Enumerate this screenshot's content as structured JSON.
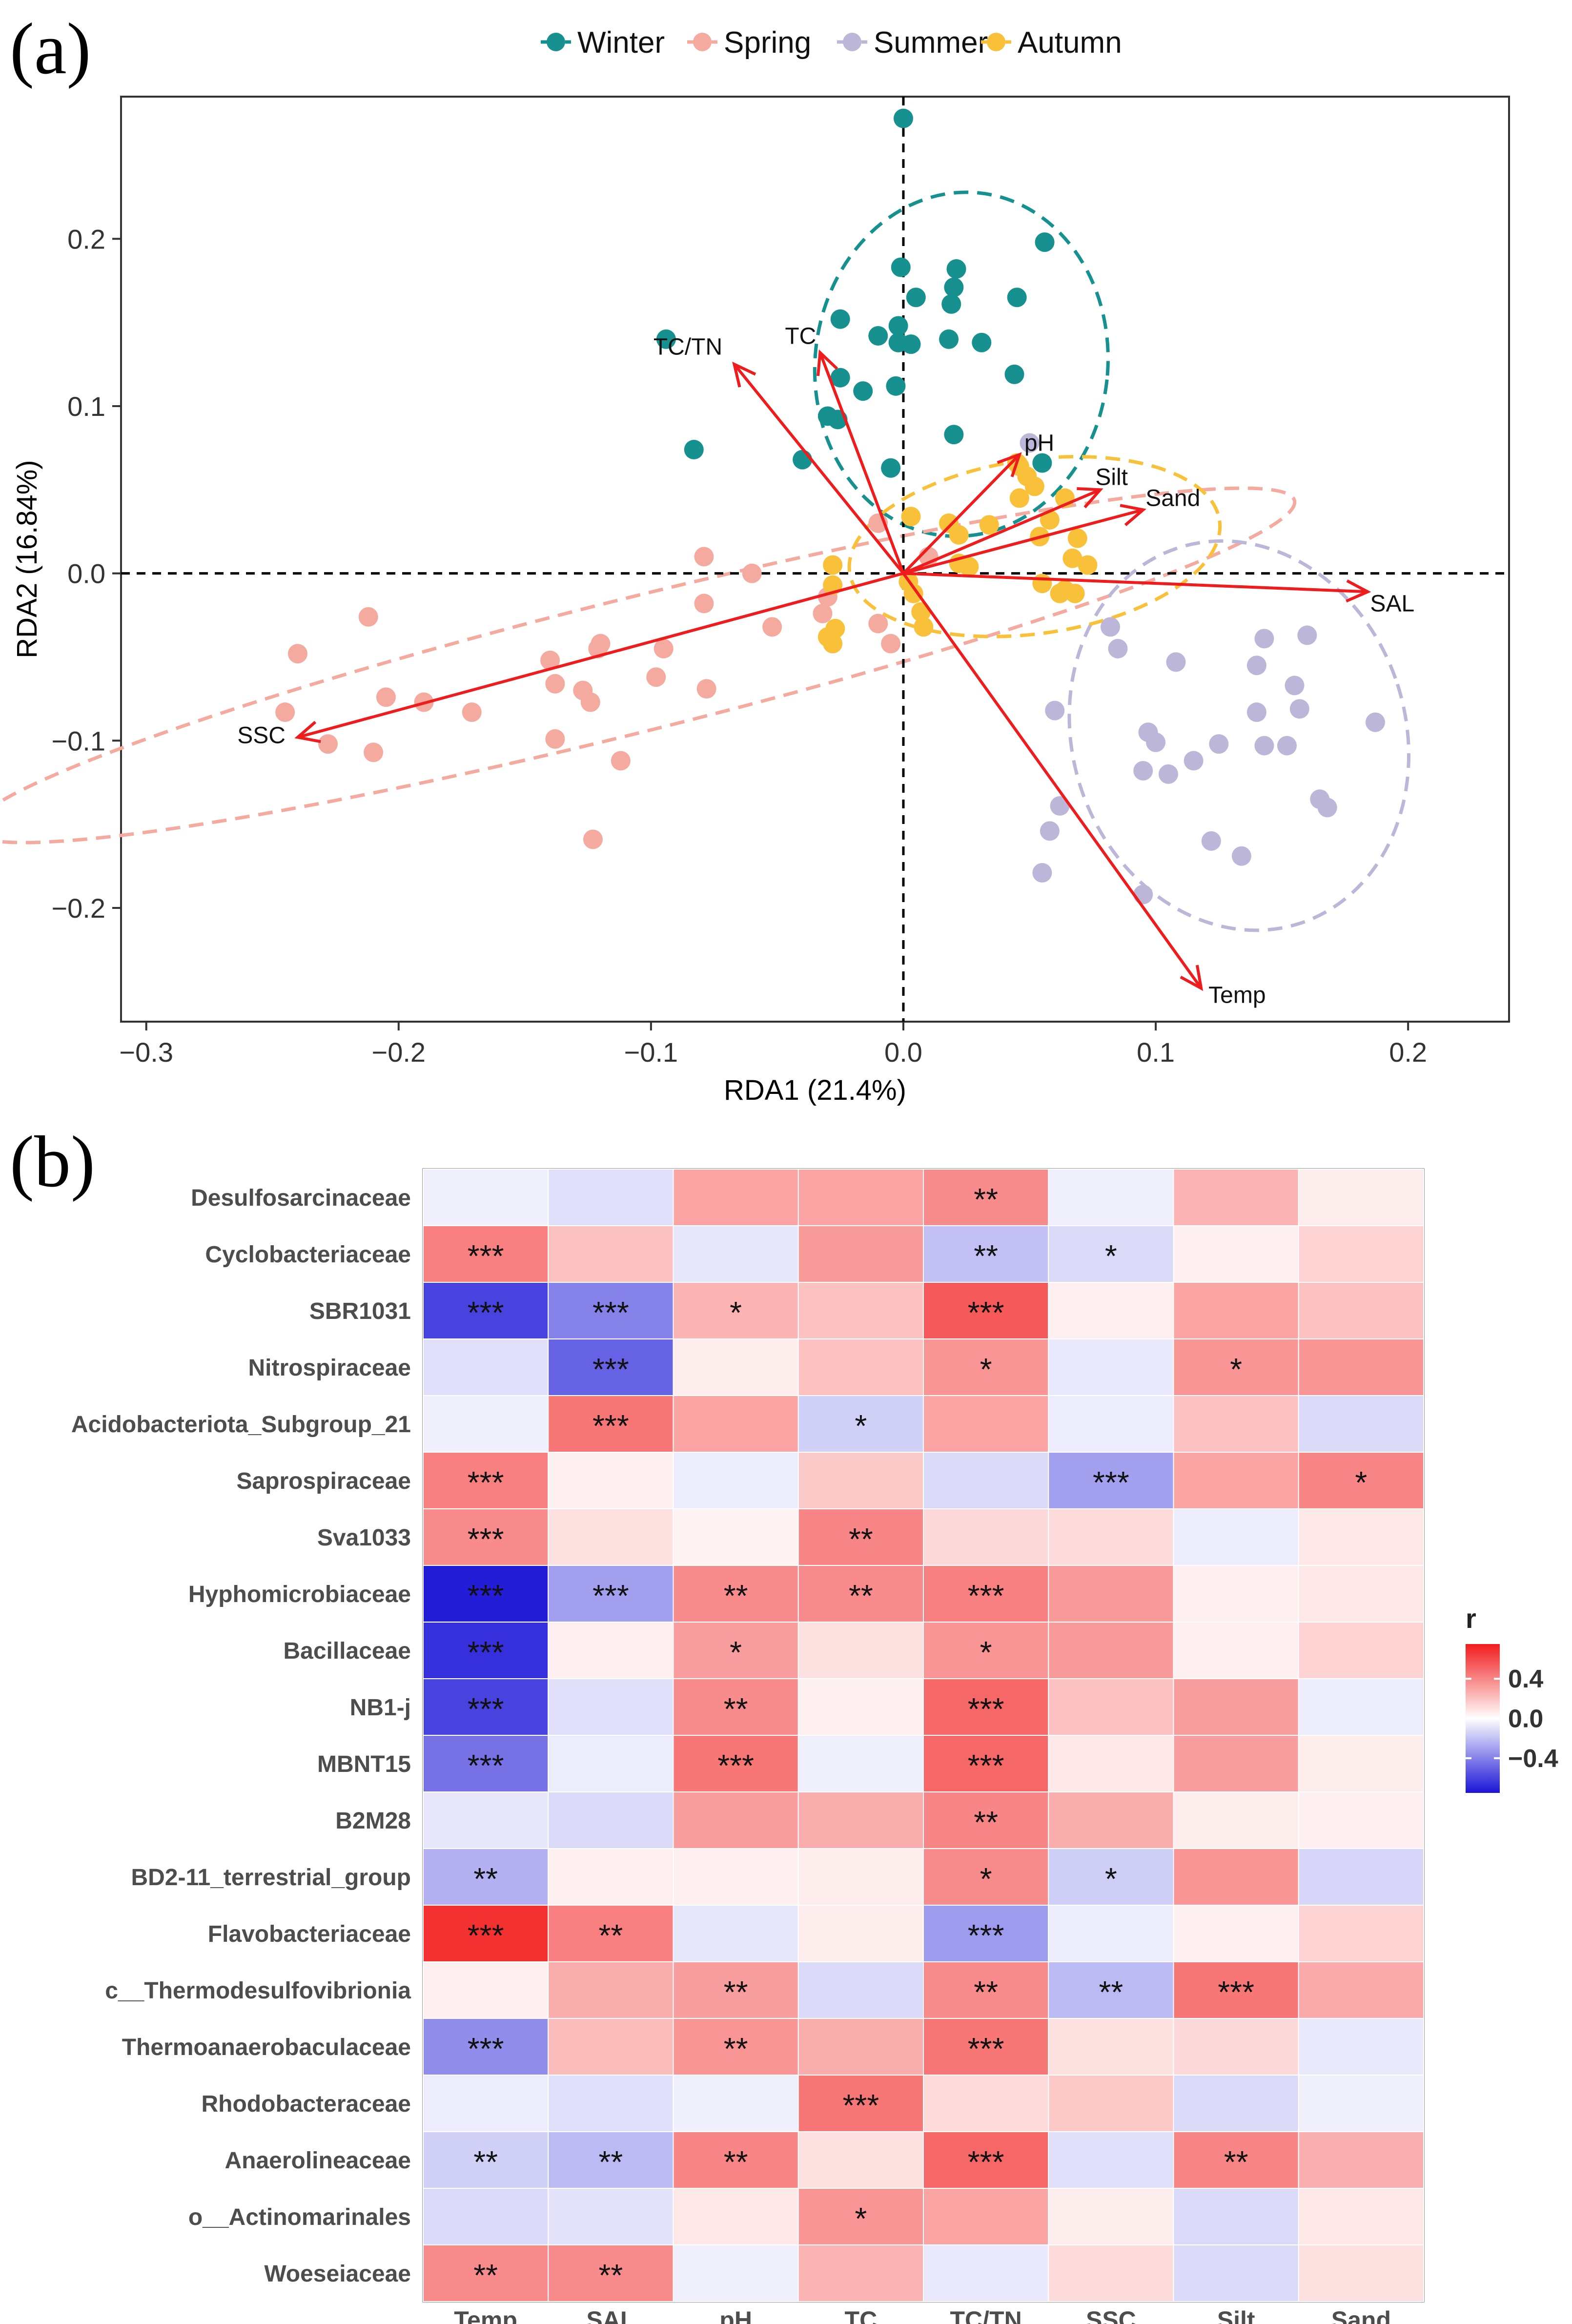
{
  "panels": {
    "a_label": "(a)",
    "b_label": "(b)"
  },
  "chart_data": [
    {
      "type": "scatter",
      "title": "",
      "xlabel": "RDA1 (21.4%)",
      "ylabel": "RDA2 (16.84%)",
      "xlim": [
        -0.31,
        0.24
      ],
      "ylim": [
        -0.268,
        0.285
      ],
      "xticks": [
        -0.3,
        -0.2,
        -0.1,
        0.0,
        0.1,
        0.2
      ],
      "xtick_labels": [
        "−0.3",
        "−0.2",
        "−0.1",
        "0.0",
        "0.1",
        "0.2"
      ],
      "yticks": [
        -0.2,
        -0.1,
        0.0,
        0.1,
        0.2
      ],
      "ytick_labels": [
        "−0.2",
        "−0.1",
        "0.0",
        "0.1",
        "0.2"
      ],
      "legend": {
        "position": "top",
        "entries": [
          {
            "name": "Winter",
            "color": "#16918f"
          },
          {
            "name": "Spring",
            "color": "#f5aaa0"
          },
          {
            "name": "Summer",
            "color": "#bcb7d8"
          },
          {
            "name": "Autumn",
            "color": "#f9c13a"
          }
        ]
      },
      "series": [
        {
          "name": "Winter",
          "color": "#16918f",
          "points": [
            [
              0.0,
              0.272
            ],
            [
              0.056,
              0.198
            ],
            [
              0.045,
              0.165
            ],
            [
              -0.001,
              0.183
            ],
            [
              0.021,
              0.182
            ],
            [
              0.02,
              0.171
            ],
            [
              0.005,
              0.165
            ],
            [
              0.019,
              0.161
            ],
            [
              -0.025,
              0.152
            ],
            [
              -0.01,
              0.142
            ],
            [
              -0.002,
              0.148
            ],
            [
              -0.002,
              0.138
            ],
            [
              0.003,
              0.137
            ],
            [
              0.018,
              0.14
            ],
            [
              0.031,
              0.138
            ],
            [
              0.044,
              0.119
            ],
            [
              -0.094,
              0.14
            ],
            [
              -0.025,
              0.117
            ],
            [
              -0.016,
              0.109
            ],
            [
              -0.003,
              0.112
            ],
            [
              -0.026,
              0.092
            ],
            [
              -0.03,
              0.094
            ],
            [
              0.02,
              0.083
            ],
            [
              -0.083,
              0.074
            ],
            [
              -0.04,
              0.068
            ],
            [
              -0.005,
              0.063
            ],
            [
              0.055,
              0.066
            ]
          ]
        },
        {
          "name": "Spring",
          "color": "#f5aaa0",
          "points": [
            [
              -0.24,
              -0.048
            ],
            [
              -0.245,
              -0.083
            ],
            [
              -0.228,
              -0.102
            ],
            [
              -0.212,
              -0.026
            ],
            [
              -0.21,
              -0.107
            ],
            [
              -0.205,
              -0.074
            ],
            [
              -0.19,
              -0.077
            ],
            [
              -0.171,
              -0.083
            ],
            [
              -0.14,
              -0.052
            ],
            [
              -0.138,
              -0.066
            ],
            [
              -0.127,
              -0.07
            ],
            [
              -0.124,
              -0.077
            ],
            [
              -0.12,
              -0.042
            ],
            [
              -0.121,
              -0.045
            ],
            [
              -0.138,
              -0.099
            ],
            [
              -0.112,
              -0.112
            ],
            [
              -0.098,
              -0.062
            ],
            [
              -0.095,
              -0.045
            ],
            [
              -0.079,
              -0.018
            ],
            [
              -0.078,
              -0.069
            ],
            [
              -0.079,
              0.01
            ],
            [
              -0.06,
              0.0
            ],
            [
              -0.052,
              -0.032
            ],
            [
              -0.123,
              -0.159
            ],
            [
              -0.032,
              -0.024
            ],
            [
              -0.03,
              -0.014
            ],
            [
              -0.01,
              -0.03
            ],
            [
              -0.005,
              -0.042
            ],
            [
              -0.01,
              0.03
            ],
            [
              0.01,
              0.01
            ]
          ]
        },
        {
          "name": "Summer",
          "color": "#bcb7d8",
          "points": [
            [
              0.05,
              0.078
            ],
            [
              0.082,
              -0.032
            ],
            [
              0.085,
              -0.045
            ],
            [
              0.108,
              -0.053
            ],
            [
              0.143,
              -0.039
            ],
            [
              0.16,
              -0.037
            ],
            [
              0.14,
              -0.055
            ],
            [
              0.155,
              -0.067
            ],
            [
              0.14,
              -0.083
            ],
            [
              0.157,
              -0.081
            ],
            [
              0.187,
              -0.089
            ],
            [
              0.097,
              -0.095
            ],
            [
              0.1,
              -0.101
            ],
            [
              0.105,
              -0.12
            ],
            [
              0.095,
              -0.118
            ],
            [
              0.115,
              -0.112
            ],
            [
              0.125,
              -0.102
            ],
            [
              0.143,
              -0.103
            ],
            [
              0.152,
              -0.103
            ],
            [
              0.165,
              -0.135
            ],
            [
              0.168,
              -0.14
            ],
            [
              0.122,
              -0.16
            ],
            [
              0.134,
              -0.169
            ],
            [
              0.06,
              -0.082
            ],
            [
              0.062,
              -0.139
            ],
            [
              0.058,
              -0.154
            ],
            [
              0.095,
              -0.192
            ],
            [
              0.055,
              -0.179
            ]
          ]
        },
        {
          "name": "Autumn",
          "color": "#f9c13a",
          "points": [
            [
              0.045,
              0.066
            ],
            [
              0.046,
              0.064
            ],
            [
              0.049,
              0.058
            ],
            [
              0.052,
              0.052
            ],
            [
              0.046,
              0.045
            ],
            [
              0.064,
              0.045
            ],
            [
              0.058,
              0.032
            ],
            [
              0.034,
              0.029
            ],
            [
              0.003,
              0.034
            ],
            [
              0.018,
              0.03
            ],
            [
              0.022,
              0.023
            ],
            [
              0.054,
              0.022
            ],
            [
              0.069,
              0.021
            ],
            [
              0.067,
              0.009
            ],
            [
              0.073,
              0.005
            ],
            [
              0.055,
              -0.006
            ],
            [
              0.064,
              -0.01
            ],
            [
              0.068,
              -0.012
            ],
            [
              0.062,
              -0.012
            ],
            [
              -0.028,
              0.005
            ],
            [
              -0.028,
              -0.007
            ],
            [
              -0.027,
              -0.033
            ],
            [
              -0.03,
              -0.038
            ],
            [
              -0.028,
              -0.042
            ],
            [
              0.002,
              -0.005
            ],
            [
              0.004,
              -0.012
            ],
            [
              0.007,
              -0.023
            ],
            [
              0.008,
              -0.032
            ],
            [
              0.022,
              0.006
            ],
            [
              0.026,
              0.004
            ]
          ]
        }
      ],
      "ellipses": [
        {
          "group": "Winter",
          "center": [
            0.023,
            0.125
          ],
          "rx": 0.058,
          "ry": 0.103,
          "rotation_deg": 6
        },
        {
          "group": "Spring",
          "center": [
            -0.107,
            -0.055
          ],
          "rx": 0.27,
          "ry": 0.04,
          "rotation_deg": -14
        },
        {
          "group": "Summer",
          "center": [
            0.133,
            -0.097
          ],
          "rx": 0.066,
          "ry": 0.118,
          "rotation_deg": -18
        },
        {
          "group": "Autumn",
          "center": [
            0.052,
            0.016
          ],
          "rx": 0.074,
          "ry": 0.052,
          "rotation_deg": -8
        }
      ],
      "arrows": [
        {
          "label": "TC/TN",
          "x": -0.067,
          "y": 0.125
        },
        {
          "label": "TC",
          "x": -0.033,
          "y": 0.132
        },
        {
          "label": "pH",
          "x": 0.046,
          "y": 0.071
        },
        {
          "label": "Silt",
          "x": 0.078,
          "y": 0.05
        },
        {
          "label": "Sand",
          "x": 0.095,
          "y": 0.038
        },
        {
          "label": "SAL",
          "x": 0.184,
          "y": -0.011
        },
        {
          "label": "SSC",
          "x": -0.24,
          "y": -0.098
        },
        {
          "label": "Temp",
          "x": 0.118,
          "y": -0.248
        }
      ],
      "reference_lines": {
        "x": 0.0,
        "y": 0.0,
        "style": "dashed"
      }
    },
    {
      "type": "heatmap",
      "title": "",
      "xlabel": "",
      "ylabel": "",
      "columns": [
        "Temp",
        "SAL",
        "pH",
        "TC",
        "TC/TN",
        "SSC",
        "Silt",
        "Sand"
      ],
      "rows": [
        "Desulfosarcinaceae",
        "Cyclobacteriaceae",
        "SBR1031",
        "Nitrospiraceae",
        "Acidobacteriota_Subgroup_21",
        "Saprospiraceae",
        "Sva1033",
        "Hyphomicrobiaceae",
        "Bacillaceae",
        "NB1-j",
        "MBNT15",
        "B2M28",
        "BD2-11_terrestrial_group",
        "Flavobacteriaceae",
        "c__Thermodesulfovibrionia",
        "Thermoanaerobaculaceae",
        "Rhodobacteraceae",
        "Anaerolineaceae",
        "o__Actinomarinales",
        "Woeseiaceae"
      ],
      "values": [
        [
          -0.05,
          -0.1,
          0.3,
          0.3,
          0.38,
          -0.05,
          0.25,
          0.06
        ],
        [
          0.42,
          0.2,
          -0.08,
          0.33,
          -0.2,
          -0.12,
          0.05,
          0.15
        ],
        [
          -0.6,
          -0.4,
          0.25,
          0.2,
          0.55,
          0.05,
          0.3,
          0.2
        ],
        [
          -0.1,
          -0.5,
          0.06,
          0.2,
          0.35,
          -0.07,
          0.35,
          0.35
        ],
        [
          -0.05,
          0.45,
          0.3,
          -0.15,
          0.3,
          -0.06,
          0.2,
          -0.12
        ],
        [
          0.42,
          0.05,
          -0.06,
          0.18,
          -0.12,
          -0.3,
          0.3,
          0.4
        ],
        [
          0.38,
          0.1,
          0.04,
          0.4,
          0.13,
          0.12,
          -0.06,
          0.08
        ],
        [
          -0.72,
          -0.3,
          0.38,
          0.38,
          0.42,
          0.33,
          0.05,
          0.08
        ],
        [
          -0.66,
          0.05,
          0.32,
          0.1,
          0.35,
          0.33,
          0.05,
          0.15
        ],
        [
          -0.6,
          -0.1,
          0.38,
          0.05,
          0.5,
          0.2,
          0.32,
          -0.06
        ],
        [
          -0.45,
          -0.06,
          0.45,
          -0.05,
          0.5,
          0.08,
          0.32,
          0.06
        ],
        [
          -0.08,
          -0.12,
          0.32,
          0.27,
          0.4,
          0.27,
          0.06,
          0.05
        ],
        [
          -0.25,
          0.05,
          0.05,
          0.06,
          0.38,
          -0.16,
          0.35,
          -0.13
        ],
        [
          0.68,
          0.42,
          -0.08,
          0.06,
          -0.32,
          -0.06,
          0.05,
          0.15
        ],
        [
          0.05,
          0.27,
          0.32,
          -0.12,
          0.38,
          -0.22,
          0.45,
          0.28
        ],
        [
          -0.36,
          0.22,
          0.35,
          0.27,
          0.45,
          0.1,
          0.13,
          -0.07
        ],
        [
          -0.06,
          -0.1,
          -0.05,
          0.45,
          0.12,
          0.18,
          -0.12,
          -0.05
        ],
        [
          -0.15,
          -0.22,
          0.4,
          0.1,
          0.5,
          -0.1,
          0.4,
          0.26
        ],
        [
          -0.12,
          -0.09,
          0.08,
          0.35,
          0.3,
          0.06,
          -0.12,
          0.08
        ],
        [
          0.38,
          0.38,
          -0.05,
          0.25,
          -0.07,
          0.12,
          -0.12,
          0.1
        ]
      ],
      "significance": [
        [
          "",
          "",
          "",
          "",
          "**",
          "",
          "",
          ""
        ],
        [
          "***",
          "",
          "",
          "",
          "**",
          "*",
          "",
          ""
        ],
        [
          "***",
          "***",
          "*",
          "",
          "***",
          "",
          "",
          ""
        ],
        [
          "",
          "***",
          "",
          "",
          "*",
          "",
          "*",
          ""
        ],
        [
          "",
          "***",
          "",
          "*",
          "",
          "",
          "",
          ""
        ],
        [
          "***",
          "",
          "",
          "",
          "",
          "***",
          "",
          "*"
        ],
        [
          "***",
          "",
          "",
          "**",
          "",
          "",
          "",
          ""
        ],
        [
          "***",
          "***",
          "**",
          "**",
          "***",
          "",
          "",
          ""
        ],
        [
          "***",
          "",
          "*",
          "",
          "*",
          "",
          "",
          ""
        ],
        [
          "***",
          "",
          "**",
          "",
          "***",
          "",
          "",
          ""
        ],
        [
          "***",
          "",
          "***",
          "",
          "***",
          "",
          "",
          ""
        ],
        [
          "",
          "",
          "",
          "",
          "**",
          "",
          "",
          ""
        ],
        [
          "**",
          "",
          "",
          "",
          "*",
          "*",
          "",
          ""
        ],
        [
          "***",
          "**",
          "",
          "",
          "***",
          "",
          "",
          ""
        ],
        [
          "",
          "",
          "**",
          "",
          "**",
          "**",
          "***",
          ""
        ],
        [
          "***",
          "",
          "**",
          "",
          "***",
          "",
          "",
          ""
        ],
        [
          "",
          "",
          "",
          "***",
          "",
          "",
          "",
          ""
        ],
        [
          "**",
          "**",
          "**",
          "",
          "***",
          "",
          "**",
          ""
        ],
        [
          "",
          "",
          "",
          "*",
          "",
          "",
          "",
          ""
        ],
        [
          "**",
          "**",
          "",
          "",
          "",
          "",
          "",
          ""
        ]
      ],
      "legend": {
        "title": "r",
        "position": "right",
        "range": [
          -0.75,
          0.75
        ],
        "ticks": [
          0.4,
          0.0,
          -0.4
        ],
        "tick_labels": [
          "0.4",
          "0.0",
          "−0.4"
        ],
        "colors": {
          "low": "#1a14d6",
          "mid": "#ffffff",
          "high": "#f21c1c"
        }
      }
    }
  ]
}
